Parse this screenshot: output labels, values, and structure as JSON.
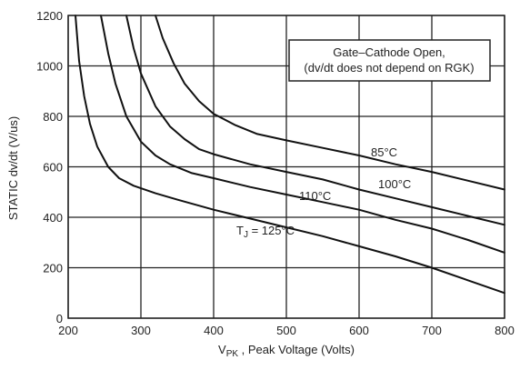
{
  "chart_data": {
    "type": "line",
    "title": "",
    "xlabel_main": "V",
    "xlabel_sub": "PK",
    "xlabel_rest": " , Peak Voltage  (Volts)",
    "ylabel": "STATIC dv/dt (V/us)",
    "xlim": [
      200,
      800
    ],
    "ylim": [
      0,
      1200
    ],
    "x_ticks": [
      200,
      300,
      400,
      500,
      600,
      700,
      800
    ],
    "y_ticks": [
      0,
      200,
      400,
      600,
      800,
      1000,
      1200
    ],
    "grid": true,
    "annotation_line1": "Gate–Cathode Open,",
    "annotation_line2": "(dv/dt does not depend on RGK)",
    "series": [
      {
        "name": "85°C",
        "x": [
          320,
          330,
          345,
          360,
          380,
          400,
          430,
          460,
          500,
          550,
          600,
          650,
          700,
          750,
          800
        ],
        "y": [
          1200,
          1110,
          1010,
          930,
          860,
          810,
          765,
          730,
          705,
          675,
          645,
          610,
          580,
          545,
          510
        ]
      },
      {
        "name": "100°C",
        "x": [
          280,
          290,
          300,
          320,
          340,
          360,
          380,
          400,
          450,
          500,
          550,
          600,
          650,
          700,
          750,
          800
        ],
        "y": [
          1200,
          1070,
          970,
          840,
          760,
          710,
          670,
          650,
          610,
          580,
          550,
          510,
          475,
          440,
          405,
          370
        ]
      },
      {
        "name": "110°C",
        "x": [
          245,
          255,
          265,
          280,
          300,
          320,
          340,
          370,
          400,
          450,
          500,
          550,
          600,
          650,
          700,
          750,
          800
        ],
        "y": [
          1200,
          1050,
          930,
          800,
          700,
          645,
          610,
          575,
          555,
          520,
          490,
          460,
          430,
          390,
          355,
          310,
          260
        ]
      },
      {
        "name_prefix": "T",
        "name_sub": "J",
        "name_rest": " = 125°C",
        "x": [
          210,
          215,
          222,
          230,
          240,
          255,
          270,
          290,
          320,
          350,
          400,
          450,
          500,
          550,
          600,
          650,
          700,
          750,
          800
        ],
        "y": [
          1200,
          1020,
          880,
          770,
          680,
          600,
          555,
          525,
          495,
          470,
          430,
          395,
          360,
          325,
          285,
          245,
          200,
          150,
          100
        ]
      }
    ]
  }
}
